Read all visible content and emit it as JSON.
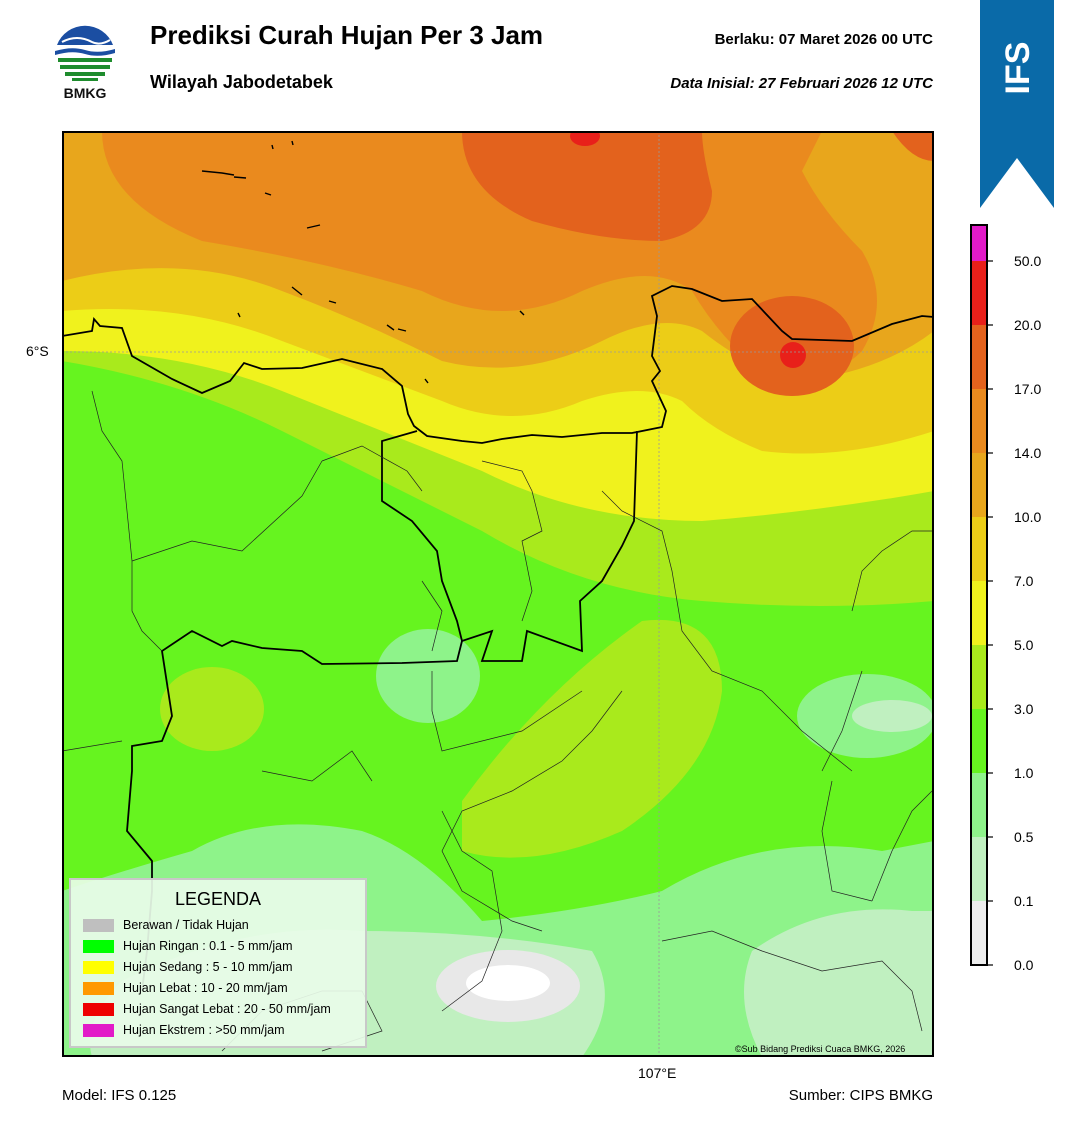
{
  "header": {
    "title": "Prediksi Curah Hujan Per 3 Jam",
    "subtitle": "Wilayah Jabodetabek",
    "valid_label": "Berlaku:  07 Maret 2026 00 UTC",
    "initial_label": "Data Inisial:  27 Februari 2026 12 UTC"
  },
  "logo": {
    "text": "BMKG"
  },
  "banner": {
    "text": "IFS",
    "color": "#0a6aa8"
  },
  "map": {
    "lat_label": "6°S",
    "lon_label": "107°E",
    "copyright": "©Sub Bidang Prediksi Cuaca BMKG, 2026"
  },
  "footer": {
    "model": "Model: IFS 0.125",
    "source": "Sumber: CIPS BMKG"
  },
  "colorbar": {
    "ticks": [
      "50.0",
      "20.0",
      "17.0",
      "14.0",
      "10.0",
      "7.0",
      "5.0",
      "3.0",
      "1.0",
      "0.5",
      "0.1",
      "0.0"
    ],
    "colors_top_to_bottom": [
      "#e21bc8",
      "#e8201a",
      "#e3621d",
      "#ea8a1e",
      "#e8a61c",
      "#eccd17",
      "#f0f21d",
      "#a9ea1c",
      "#66f41f",
      "#8ef38a",
      "#c0f0c0",
      "#ededed"
    ]
  },
  "legend": {
    "title": "LEGENDA",
    "items": [
      {
        "label": "Berawan / Tidak Hujan",
        "color": "#bfbfbf"
      },
      {
        "label": "Hujan Ringan : 0.1 - 5 mm/jam",
        "color": "#00ff00"
      },
      {
        "label": "Hujan Sedang : 5 - 10 mm/jam",
        "color": "#ffff00"
      },
      {
        "label": "Hujan Lebat : 10 - 20 mm/jam",
        "color": "#ff9900"
      },
      {
        "label": "Hujan Sangat Lebat : 20 - 50 mm/jam",
        "color": "#ee0000"
      },
      {
        "label": "Hujan Ekstrem : >50 mm/jam",
        "color": "#e21bc8"
      }
    ]
  }
}
